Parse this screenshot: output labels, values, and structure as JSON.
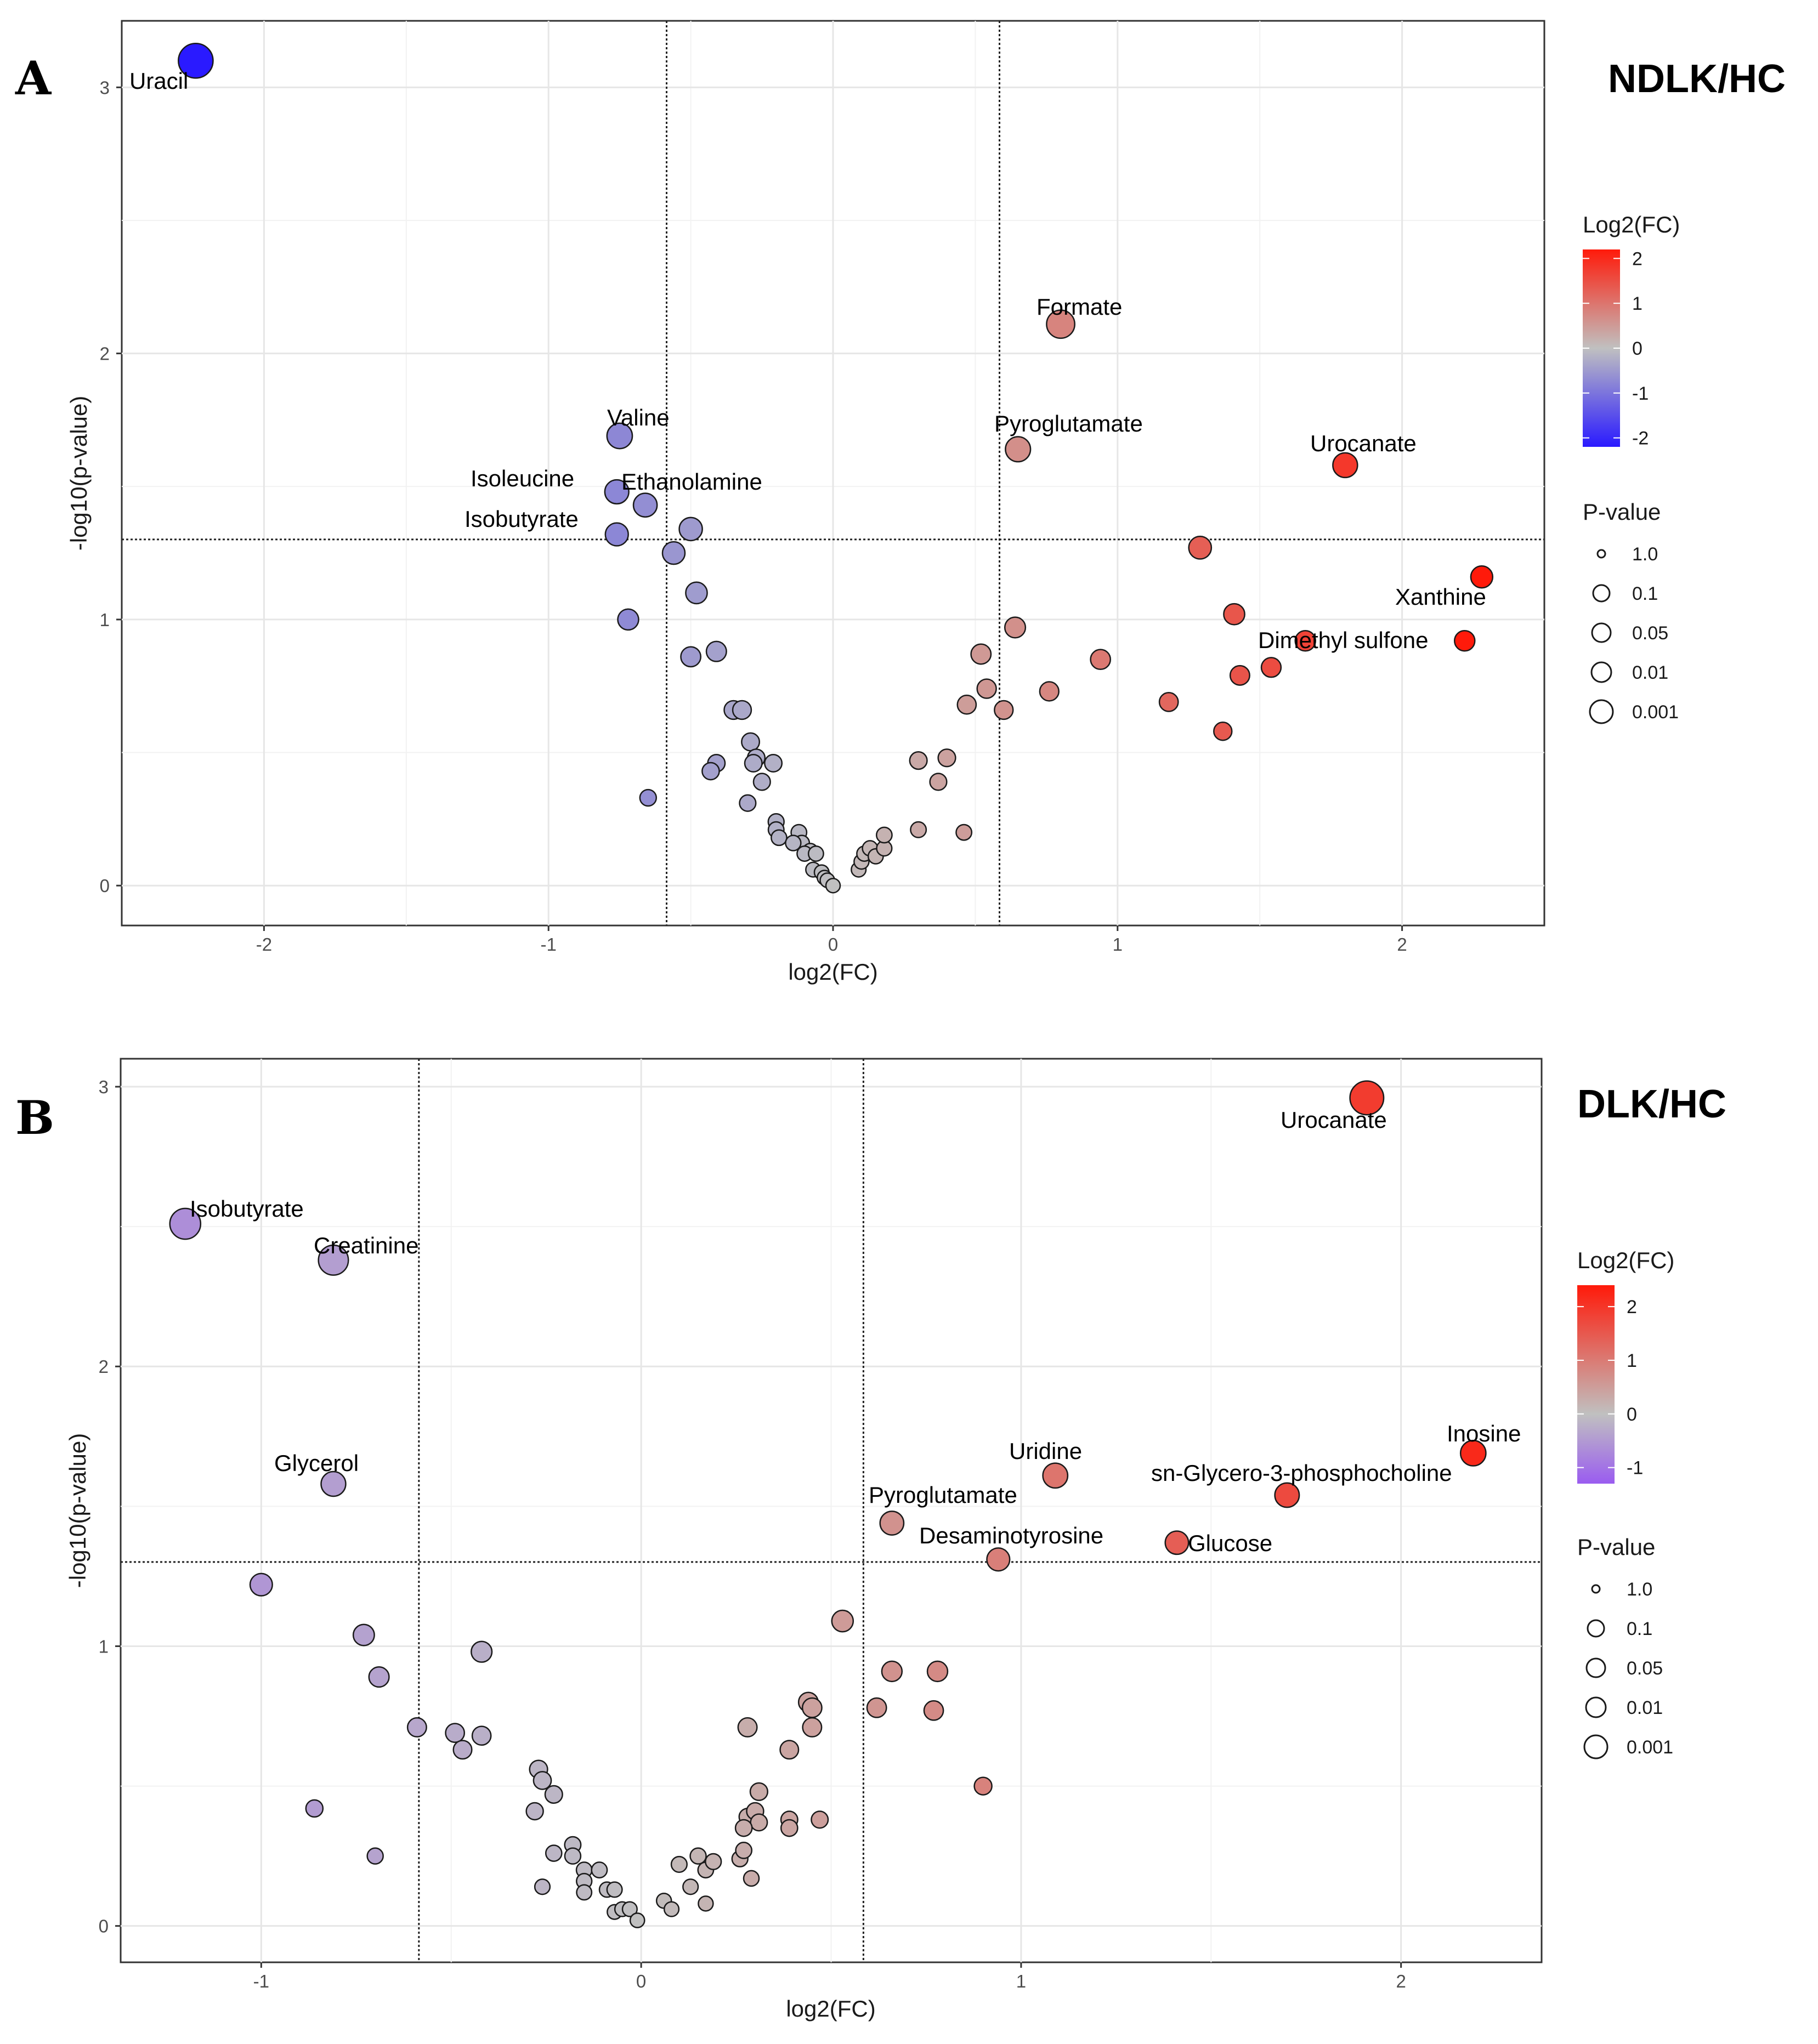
{
  "chart_data": [
    {
      "panel": "A",
      "title": "NDLK/HC",
      "type": "scatter",
      "xlabel": "log2(FC)",
      "ylabel": "-log10(p-value)",
      "xlim": [
        -2.5,
        2.5
      ],
      "ylim": [
        -0.15,
        3.25
      ],
      "xticks": [
        -2,
        -1,
        0,
        1,
        2
      ],
      "yticks": [
        0,
        1,
        2,
        3
      ],
      "vlines": [
        -0.585,
        0.585
      ],
      "hline": 1.301,
      "colorbar": {
        "title": "Log2(FC)",
        "ticks": [
          2,
          1,
          0,
          -1,
          -2
        ],
        "min": -2.2,
        "max": 2.2
      },
      "size_legend": {
        "title": "P-value",
        "labels": [
          "1.0",
          "0.1",
          "0.05",
          "0.01",
          "0.001"
        ]
      },
      "labeled_points": [
        {
          "label": "Uracil",
          "x": -2.24,
          "y": 3.1
        },
        {
          "label": "Formate",
          "x": 0.8,
          "y": 2.11
        },
        {
          "label": "Valine",
          "x": -0.75,
          "y": 1.69
        },
        {
          "label": "Pyroglutamate",
          "x": 0.65,
          "y": 1.64
        },
        {
          "label": "Urocanate",
          "x": 1.8,
          "y": 1.58
        },
        {
          "label": "Isoleucine",
          "x": -0.76,
          "y": 1.48
        },
        {
          "label": "Ethanolamine",
          "x": -0.66,
          "y": 1.43
        },
        {
          "label": "Isobutyrate",
          "x": -0.76,
          "y": 1.32
        },
        {
          "label": "Xanthine",
          "x": 2.28,
          "y": 1.16
        },
        {
          "label": "Dimethyl sulfone",
          "x": 2.22,
          "y": 0.92
        }
      ],
      "other_points": [
        {
          "x": -0.5,
          "y": 1.34
        },
        {
          "x": -0.56,
          "y": 1.25
        },
        {
          "x": -0.48,
          "y": 1.1
        },
        {
          "x": -0.72,
          "y": 1.0
        },
        {
          "x": -0.41,
          "y": 0.88
        },
        {
          "x": -0.5,
          "y": 0.86
        },
        {
          "x": -0.35,
          "y": 0.66
        },
        {
          "x": -0.32,
          "y": 0.66
        },
        {
          "x": -0.29,
          "y": 0.54
        },
        {
          "x": -0.27,
          "y": 0.48
        },
        {
          "x": -0.21,
          "y": 0.46
        },
        {
          "x": -0.28,
          "y": 0.46
        },
        {
          "x": -0.41,
          "y": 0.46
        },
        {
          "x": -0.43,
          "y": 0.43
        },
        {
          "x": -0.25,
          "y": 0.39
        },
        {
          "x": -0.65,
          "y": 0.33
        },
        {
          "x": -0.3,
          "y": 0.31
        },
        {
          "x": -0.2,
          "y": 0.24
        },
        {
          "x": -0.2,
          "y": 0.21
        },
        {
          "x": -0.12,
          "y": 0.2
        },
        {
          "x": -0.19,
          "y": 0.18
        },
        {
          "x": -0.11,
          "y": 0.16
        },
        {
          "x": -0.14,
          "y": 0.16
        },
        {
          "x": -0.08,
          "y": 0.13
        },
        {
          "x": -0.1,
          "y": 0.12
        },
        {
          "x": -0.06,
          "y": 0.12
        },
        {
          "x": -0.07,
          "y": 0.06
        },
        {
          "x": -0.04,
          "y": 0.05
        },
        {
          "x": -0.03,
          "y": 0.03
        },
        {
          "x": -0.02,
          "y": 0.02
        },
        {
          "x": 0.0,
          "y": 0.0
        },
        {
          "x": 0.09,
          "y": 0.06
        },
        {
          "x": 0.1,
          "y": 0.09
        },
        {
          "x": 0.11,
          "y": 0.12
        },
        {
          "x": 0.13,
          "y": 0.14
        },
        {
          "x": 0.15,
          "y": 0.11
        },
        {
          "x": 0.18,
          "y": 0.14
        },
        {
          "x": 0.18,
          "y": 0.19
        },
        {
          "x": 0.3,
          "y": 0.21
        },
        {
          "x": 0.46,
          "y": 0.2
        },
        {
          "x": 0.3,
          "y": 0.47
        },
        {
          "x": 0.4,
          "y": 0.48
        },
        {
          "x": 0.37,
          "y": 0.39
        },
        {
          "x": 0.47,
          "y": 0.68
        },
        {
          "x": 0.54,
          "y": 0.74
        },
        {
          "x": 0.6,
          "y": 0.66
        },
        {
          "x": 0.52,
          "y": 0.87
        },
        {
          "x": 0.64,
          "y": 0.97
        },
        {
          "x": 0.76,
          "y": 0.73
        },
        {
          "x": 0.94,
          "y": 0.85
        },
        {
          "x": 1.18,
          "y": 0.69
        },
        {
          "x": 1.37,
          "y": 0.58
        },
        {
          "x": 1.29,
          "y": 1.27
        },
        {
          "x": 1.41,
          "y": 1.02
        },
        {
          "x": 1.43,
          "y": 0.79
        },
        {
          "x": 1.54,
          "y": 0.82
        },
        {
          "x": 1.66,
          "y": 0.92
        }
      ]
    },
    {
      "panel": "B",
      "title": "DLK/HC",
      "type": "scatter",
      "xlabel": "log2(FC)",
      "ylabel": "-log10(p-value)",
      "xlim": [
        -1.37,
        2.37
      ],
      "ylim": [
        -0.13,
        3.1
      ],
      "xticks": [
        -1,
        0,
        1,
        2
      ],
      "yticks": [
        0,
        1,
        2,
        3
      ],
      "vlines": [
        -0.585,
        0.585
      ],
      "hline": 1.301,
      "colorbar": {
        "title": "Log2(FC)",
        "ticks": [
          2,
          1,
          0,
          -1
        ],
        "min": -1.3,
        "max": 2.4
      },
      "size_legend": {
        "title": "P-value",
        "labels": [
          "1.0",
          "0.1",
          "0.05",
          "0.01",
          "0.001"
        ]
      },
      "labeled_points": [
        {
          "label": "Urocanate",
          "x": 1.91,
          "y": 2.96
        },
        {
          "label": "Isobutyrate",
          "x": -1.2,
          "y": 2.51
        },
        {
          "label": "Creatinine",
          "x": -0.81,
          "y": 2.38
        },
        {
          "label": "Inosine",
          "x": 2.19,
          "y": 1.69
        },
        {
          "label": "Uridine",
          "x": 1.09,
          "y": 1.61
        },
        {
          "label": "Glycerol",
          "x": -0.81,
          "y": 1.58
        },
        {
          "label": "sn-Glycero-3-phosphocholine",
          "x": 1.7,
          "y": 1.54
        },
        {
          "label": "Pyroglutamate",
          "x": 0.66,
          "y": 1.44
        },
        {
          "label": "Glucose",
          "x": 1.41,
          "y": 1.37
        },
        {
          "label": "Desaminotyrosine",
          "x": 0.94,
          "y": 1.31
        }
      ],
      "other_points": [
        {
          "x": -1.0,
          "y": 1.22
        },
        {
          "x": -0.73,
          "y": 1.04
        },
        {
          "x": -0.69,
          "y": 0.89
        },
        {
          "x": -0.42,
          "y": 0.98
        },
        {
          "x": -0.59,
          "y": 0.71
        },
        {
          "x": -0.49,
          "y": 0.69
        },
        {
          "x": -0.47,
          "y": 0.63
        },
        {
          "x": -0.42,
          "y": 0.68
        },
        {
          "x": -0.27,
          "y": 0.56
        },
        {
          "x": -0.26,
          "y": 0.52
        },
        {
          "x": -0.23,
          "y": 0.47
        },
        {
          "x": -0.28,
          "y": 0.41
        },
        {
          "x": -0.86,
          "y": 0.42
        },
        {
          "x": -0.7,
          "y": 0.25
        },
        {
          "x": -0.18,
          "y": 0.29
        },
        {
          "x": -0.18,
          "y": 0.25
        },
        {
          "x": -0.23,
          "y": 0.26
        },
        {
          "x": -0.15,
          "y": 0.2
        },
        {
          "x": -0.15,
          "y": 0.16
        },
        {
          "x": -0.11,
          "y": 0.2
        },
        {
          "x": -0.26,
          "y": 0.14
        },
        {
          "x": -0.15,
          "y": 0.12
        },
        {
          "x": -0.09,
          "y": 0.13
        },
        {
          "x": -0.07,
          "y": 0.13
        },
        {
          "x": -0.07,
          "y": 0.05
        },
        {
          "x": -0.05,
          "y": 0.06
        },
        {
          "x": -0.03,
          "y": 0.06
        },
        {
          "x": -0.01,
          "y": 0.02
        },
        {
          "x": 0.06,
          "y": 0.09
        },
        {
          "x": 0.08,
          "y": 0.06
        },
        {
          "x": 0.1,
          "y": 0.22
        },
        {
          "x": 0.13,
          "y": 0.14
        },
        {
          "x": 0.15,
          "y": 0.25
        },
        {
          "x": 0.17,
          "y": 0.2
        },
        {
          "x": 0.17,
          "y": 0.08
        },
        {
          "x": 0.19,
          "y": 0.23
        },
        {
          "x": 0.26,
          "y": 0.24
        },
        {
          "x": 0.27,
          "y": 0.27
        },
        {
          "x": 0.29,
          "y": 0.17
        },
        {
          "x": 0.28,
          "y": 0.39
        },
        {
          "x": 0.3,
          "y": 0.41
        },
        {
          "x": 0.31,
          "y": 0.37
        },
        {
          "x": 0.27,
          "y": 0.35
        },
        {
          "x": 0.31,
          "y": 0.48
        },
        {
          "x": 0.28,
          "y": 0.71
        },
        {
          "x": 0.39,
          "y": 0.38
        },
        {
          "x": 0.39,
          "y": 0.35
        },
        {
          "x": 0.47,
          "y": 0.38
        },
        {
          "x": 0.39,
          "y": 0.63
        },
        {
          "x": 0.45,
          "y": 0.71
        },
        {
          "x": 0.44,
          "y": 0.8
        },
        {
          "x": 0.45,
          "y": 0.78
        },
        {
          "x": 0.53,
          "y": 1.09
        },
        {
          "x": 0.62,
          "y": 0.78
        },
        {
          "x": 0.66,
          "y": 0.91
        },
        {
          "x": 0.78,
          "y": 0.91
        },
        {
          "x": 0.77,
          "y": 0.77
        },
        {
          "x": 0.9,
          "y": 0.5
        }
      ]
    }
  ]
}
